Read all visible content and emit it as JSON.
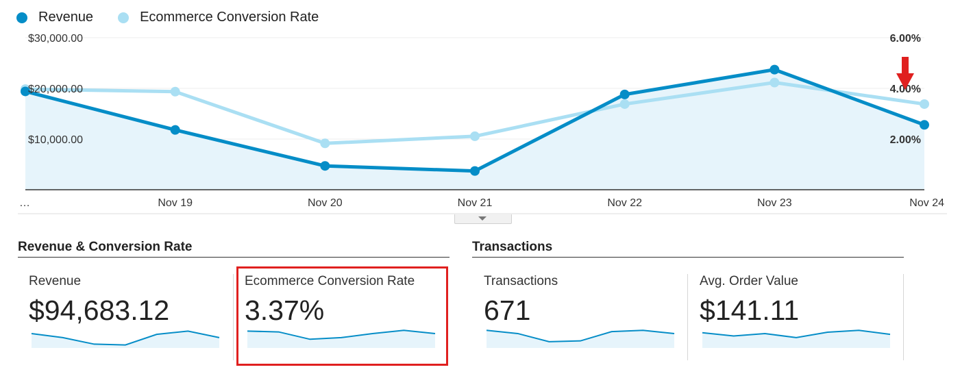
{
  "colors": {
    "revenue": "#058dc7",
    "conversion": "#aadff3",
    "area_fill": "#e6f4fb",
    "highlight": "#e0201f",
    "annotation_arrow": "#e0201f"
  },
  "legend": {
    "revenue_label": "Revenue",
    "conversion_label": "Ecommerce Conversion Rate"
  },
  "chart_data": {
    "type": "line",
    "x": [
      "…",
      "Nov 19",
      "Nov 20",
      "Nov 21",
      "Nov 22",
      "Nov 23",
      "Nov 24"
    ],
    "y_left_ticks": [
      "$10,000.00",
      "$20,000.00",
      "$30,000.00"
    ],
    "y_right_ticks": [
      "2.00%",
      "4.00%",
      "6.00%"
    ],
    "y_left_range": [
      0,
      30000
    ],
    "y_right_range": [
      0,
      6
    ],
    "series": [
      {
        "name": "Revenue",
        "axis": "left",
        "values": [
          19400,
          11800,
          4700,
          3700,
          18800,
          23700,
          12800
        ]
      },
      {
        "name": "Ecommerce Conversion Rate",
        "axis": "right",
        "values": [
          3.97,
          3.87,
          1.83,
          2.11,
          3.38,
          4.23,
          3.38
        ]
      }
    ],
    "grid": true,
    "annotation": "red arrow pointing down at Nov 24, near the 4.00% tick"
  },
  "collapse_icon": "chevron-down-icon",
  "sections": [
    {
      "title": "Revenue & Conversion Rate"
    },
    {
      "title": "Transactions"
    }
  ],
  "metrics": [
    {
      "label": "Revenue",
      "value": "$94,683.12",
      "spark": [
        0.8,
        0.55,
        0.15,
        0.1,
        0.75,
        0.95,
        0.55
      ]
    },
    {
      "label": "Ecommerce Conversion Rate",
      "value": "3.37%",
      "spark": [
        0.95,
        0.9,
        0.45,
        0.55,
        0.8,
        1.0,
        0.8
      ]
    },
    {
      "label": "Transactions",
      "value": "671",
      "spark": [
        1.0,
        0.8,
        0.3,
        0.35,
        0.92,
        1.0,
        0.8
      ]
    },
    {
      "label": "Avg. Order Value",
      "value": "$141.11",
      "spark": [
        0.85,
        0.65,
        0.8,
        0.55,
        0.88,
        1.0,
        0.75
      ]
    }
  ]
}
